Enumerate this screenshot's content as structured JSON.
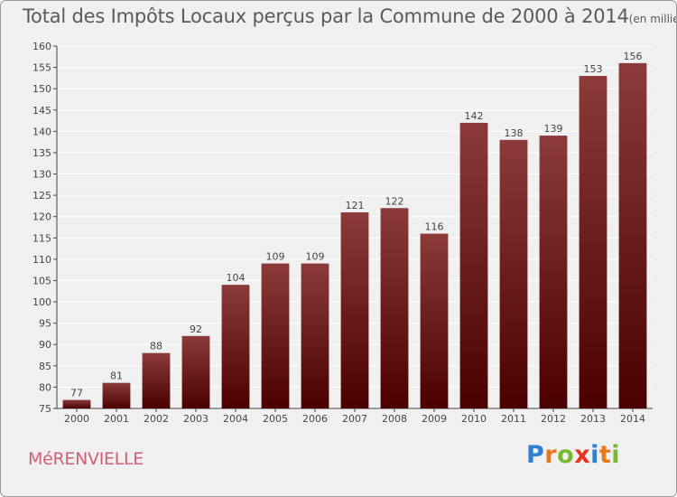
{
  "title": "Total des Impôts Locaux perçus par la Commune de 2000 à 2014",
  "title_unit": "(en milliers d'€)",
  "commune_name": "MéRENVIELLE",
  "logo": {
    "text": "Proxiti",
    "letter_colors": [
      "#2f7fd0",
      "#e8781e",
      "#7ab830",
      "#e8321e",
      "#2f7fd0",
      "#e8781e",
      "#7ab830"
    ]
  },
  "colors": {
    "bar_top": "#8c3a3a",
    "bar_bottom": "#4a0000",
    "background": "#f0f0f0",
    "grid": "#ffffff",
    "commune_text": "#d06075"
  },
  "chart_data": {
    "type": "bar",
    "categories": [
      "2000",
      "2001",
      "2002",
      "2003",
      "2004",
      "2005",
      "2006",
      "2007",
      "2008",
      "2009",
      "2010",
      "2011",
      "2012",
      "2013",
      "2014"
    ],
    "values": [
      77,
      81,
      88,
      92,
      104,
      109,
      109,
      121,
      122,
      116,
      142,
      138,
      139,
      153,
      156
    ],
    "ylim": [
      75,
      160
    ],
    "yticks": [
      75,
      80,
      85,
      90,
      95,
      100,
      105,
      110,
      115,
      120,
      125,
      130,
      135,
      140,
      145,
      150,
      155,
      160
    ],
    "grid": true,
    "xlabel": "",
    "ylabel": ""
  }
}
